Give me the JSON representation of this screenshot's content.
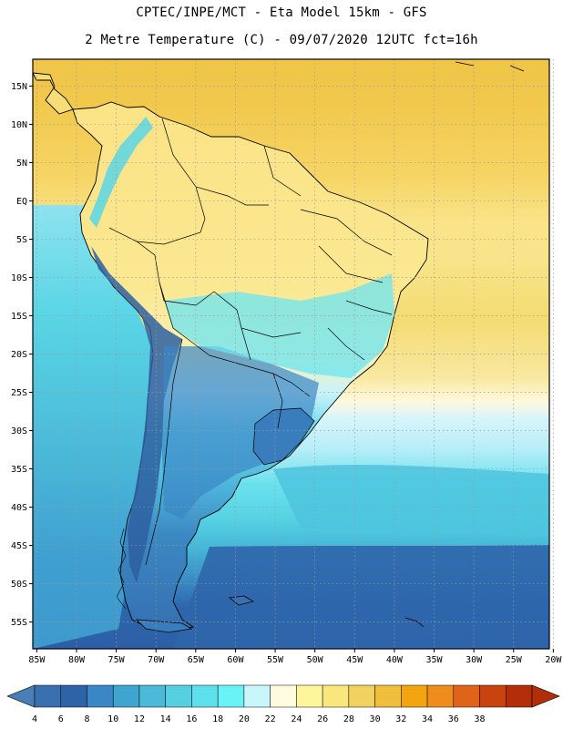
{
  "header": {
    "line1": "CPTEC/INPE/MCT -  Eta Model 15km - GFS",
    "line2": "2 Metre Temperature (C) - 09/07/2020 12UTC fct=16h"
  },
  "axes": {
    "lat_labels": [
      "15N",
      "10N",
      "5N",
      "EQ",
      "5S",
      "10S",
      "15S",
      "20S",
      "25S",
      "30S",
      "35S",
      "40S",
      "45S",
      "50S",
      "55S"
    ],
    "lat_values": [
      15,
      10,
      5,
      0,
      -5,
      -10,
      -15,
      -20,
      -25,
      -30,
      -35,
      -40,
      -45,
      -50,
      -55
    ],
    "lon_labels": [
      "85W",
      "80W",
      "75W",
      "70W",
      "65W",
      "60W",
      "55W",
      "50W",
      "45W",
      "40W",
      "35W",
      "30W",
      "25W",
      "20W"
    ],
    "lon_values": [
      -85,
      -80,
      -75,
      -70,
      -65,
      -60,
      -55,
      -50,
      -45,
      -40,
      -35,
      -30,
      -25,
      -20
    ],
    "lat_range": [
      -58.5,
      18.5
    ],
    "lon_range": [
      -85.5,
      -20.5
    ]
  },
  "colorbar": {
    "labels": [
      "4",
      "6",
      "8",
      "10",
      "12",
      "14",
      "16",
      "18",
      "20",
      "22",
      "24",
      "26",
      "28",
      "30",
      "32",
      "34",
      "36",
      "38"
    ],
    "colors": [
      "#3a6fb0",
      "#2e63a8",
      "#3b86c4",
      "#40a4d0",
      "#4bbad8",
      "#56cfe0",
      "#5ee0ec",
      "#6af3f7",
      "#c9f6fb",
      "#fffbe0",
      "#fff59a",
      "#f9e77e",
      "#f2d25f",
      "#efbe3c",
      "#f2a50f",
      "#ee8d1c",
      "#e0631a",
      "#c8440f",
      "#b22e0a"
    ],
    "left_arrow_color": "#4a7eb6",
    "right_arrow_color": "#b22e0a"
  },
  "styles": {
    "ocean_north": "#f2cd52",
    "ocean_equator": "#f8e37a",
    "ocean_south_far": "#2e60a8",
    "land_north": "#fbe58a",
    "andes": "#2e5fa0",
    "coast_line": "#000000",
    "grid": "#9a9a9a"
  }
}
